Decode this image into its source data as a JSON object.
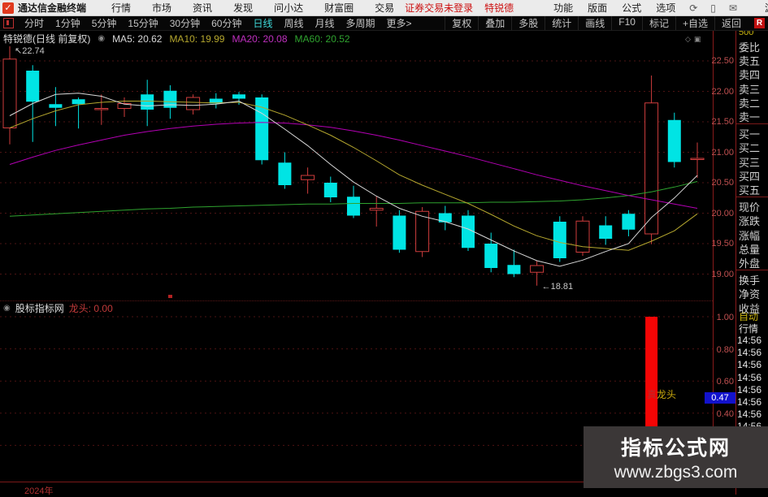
{
  "menu_bar": {
    "app_title": "通达信金融终端",
    "items": [
      "行情",
      "市场",
      "资讯",
      "发现",
      "问小达",
      "财富圈",
      "交易"
    ],
    "login_status": "证券交易未登录",
    "stock_name": "特锐德",
    "tool_items": [
      "功能",
      "版面",
      "公式",
      "选项"
    ],
    "icons": [
      "refresh-icon",
      "mobile-icon",
      "mail-icon"
    ],
    "user_label": "游客"
  },
  "period_bar": {
    "items": [
      "分时",
      "1分钟",
      "5分钟",
      "15分钟",
      "30分钟",
      "60分钟",
      "日线",
      "周线",
      "月线",
      "多周期",
      "更多>"
    ],
    "active": "日线",
    "right_items": [
      "复权",
      "叠加",
      "多股",
      "统计",
      "画线",
      "F10",
      "标记",
      "+自选",
      "返回"
    ],
    "badge": "R"
  },
  "chart_header": {
    "title": "特锐德(日线 前复权)",
    "ma_items": [
      {
        "label": "MA5: 20.62",
        "color": "#d8d8d8"
      },
      {
        "label": "MA10: 19.99",
        "color": "#b5a72e"
      },
      {
        "label": "MA20: 20.08",
        "color": "#c030c0"
      },
      {
        "label": "MA60: 20.52",
        "color": "#2fa32f"
      }
    ]
  },
  "chart_data": {
    "type": "candlestick",
    "symbol": "特锐德",
    "period": "日线 前复权",
    "price_axis_ticks": [
      22.5,
      22.0,
      21.5,
      21.0,
      20.5,
      20.0,
      19.5,
      19.0
    ],
    "high_annotation": "22.74",
    "low_annotation": "18.81",
    "high_index": 0,
    "low_index": 23,
    "candles": [
      [
        21.4,
        22.74,
        21.13,
        22.53
      ],
      [
        22.34,
        22.43,
        21.17,
        21.83
      ],
      [
        21.79,
        22.07,
        21.43,
        21.73
      ],
      [
        21.87,
        21.9,
        21.39,
        21.79
      ],
      [
        21.7,
        21.95,
        21.45,
        21.72
      ],
      [
        21.72,
        21.9,
        21.58,
        21.8
      ],
      [
        21.95,
        22.19,
        21.43,
        21.7
      ],
      [
        22.01,
        22.1,
        21.55,
        21.73
      ],
      [
        21.7,
        21.95,
        21.62,
        21.9
      ],
      [
        21.88,
        21.97,
        21.72,
        21.8
      ],
      [
        21.95,
        21.99,
        21.78,
        21.88
      ],
      [
        21.9,
        21.95,
        20.8,
        20.87
      ],
      [
        20.83,
        21.0,
        20.4,
        20.46
      ],
      [
        20.55,
        20.75,
        20.32,
        20.62
      ],
      [
        20.5,
        20.6,
        20.18,
        20.26
      ],
      [
        20.27,
        20.45,
        19.92,
        19.96
      ],
      [
        20.05,
        20.28,
        19.78,
        20.08
      ],
      [
        19.96,
        20.05,
        19.35,
        19.4
      ],
      [
        19.37,
        20.1,
        19.28,
        20.03
      ],
      [
        20.0,
        20.12,
        19.72,
        19.85
      ],
      [
        19.96,
        20.05,
        19.38,
        19.43
      ],
      [
        19.5,
        19.68,
        19.03,
        19.1
      ],
      [
        19.15,
        19.4,
        18.95,
        19.0
      ],
      [
        19.03,
        19.22,
        18.81,
        19.14
      ],
      [
        19.86,
        19.95,
        19.2,
        19.26
      ],
      [
        19.36,
        19.95,
        19.3,
        19.87
      ],
      [
        19.8,
        19.95,
        19.48,
        19.58
      ],
      [
        19.99,
        20.05,
        19.62,
        19.73
      ],
      [
        19.66,
        22.26,
        19.49,
        21.81
      ],
      [
        21.53,
        21.65,
        20.75,
        20.84
      ],
      [
        20.88,
        21.16,
        20.58,
        20.9
      ]
    ],
    "ma5": [
      21.6,
      21.8,
      21.95,
      21.97,
      21.92,
      21.79,
      21.76,
      21.78,
      21.77,
      21.79,
      21.84,
      21.64,
      21.38,
      21.11,
      20.8,
      20.51,
      20.28,
      20.08,
      19.95,
      19.86,
      19.74,
      19.56,
      19.38,
      19.22,
      19.13,
      19.23,
      19.37,
      19.5,
      19.93,
      20.25,
      20.62
    ],
    "ma10": [
      21.4,
      21.55,
      21.68,
      21.78,
      21.82,
      21.84,
      21.84,
      21.83,
      21.82,
      21.81,
      21.82,
      21.74,
      21.61,
      21.45,
      21.28,
      21.08,
      20.86,
      20.63,
      20.46,
      20.31,
      20.16,
      19.98,
      19.79,
      19.63,
      19.52,
      19.45,
      19.42,
      19.39,
      19.54,
      19.71,
      19.99
    ],
    "ma20": [
      20.8,
      20.92,
      21.03,
      21.12,
      21.2,
      21.28,
      21.34,
      21.39,
      21.43,
      21.46,
      21.48,
      21.49,
      21.48,
      21.45,
      21.41,
      21.35,
      21.28,
      21.2,
      21.11,
      21.02,
      20.93,
      20.83,
      20.73,
      20.63,
      20.54,
      20.45,
      20.37,
      20.29,
      20.22,
      20.15,
      20.08
    ],
    "ma60": [
      19.95,
      19.97,
      19.99,
      20.01,
      20.03,
      20.05,
      20.07,
      20.08,
      20.1,
      20.11,
      20.12,
      20.13,
      20.14,
      20.15,
      20.15,
      20.16,
      20.16,
      20.16,
      20.17,
      20.17,
      20.17,
      20.18,
      20.18,
      20.19,
      20.2,
      20.22,
      20.25,
      20.29,
      20.35,
      20.43,
      20.52
    ],
    "colors": {
      "up": "#cf3d3d",
      "down": "#00e4e4",
      "ma5": "#d8d8d8",
      "ma10": "#b5a72e",
      "ma20": "#b400b4",
      "ma60": "#2fa32f"
    }
  },
  "indicator_panel": {
    "source_name": "股标指标网",
    "value_label": "龙头: 0.00",
    "signal_char": "真",
    "signal_rest": "龙头",
    "axis_ticks": [
      "1.00",
      "0.80",
      "0.60",
      "0.40"
    ],
    "axis_tick_values": [
      1.0,
      0.8,
      0.6,
      0.4
    ],
    "marker_value": "0.47",
    "chart_data": {
      "type": "bar",
      "series_name": "龙头",
      "bar_index": 28,
      "bar_value": 1.0,
      "ylim": [
        0,
        1.03
      ],
      "bar_color": "#f50505"
    }
  },
  "date_axis": {
    "year_label": "2024年"
  },
  "quote_panel": {
    "top_partial": "500",
    "groups": [
      [
        "委比",
        "卖五",
        "卖四",
        "卖三",
        "卖二",
        "卖一"
      ],
      [
        "买一",
        "买二",
        "买三",
        "买四",
        "买五"
      ],
      [
        "现价",
        "涨跌",
        "涨幅",
        "总量",
        "外盘"
      ],
      [
        "换手",
        "净资",
        "收益"
      ]
    ],
    "auto_label": "自动",
    "quote_label": "行情",
    "times": [
      "14:56",
      "14:56",
      "14:56",
      "14:56",
      "14:56",
      "14:56",
      "14:56",
      "14:56"
    ]
  },
  "watermark": {
    "site_name": "指标公式网",
    "site_url": "www.zbgs3.com"
  }
}
